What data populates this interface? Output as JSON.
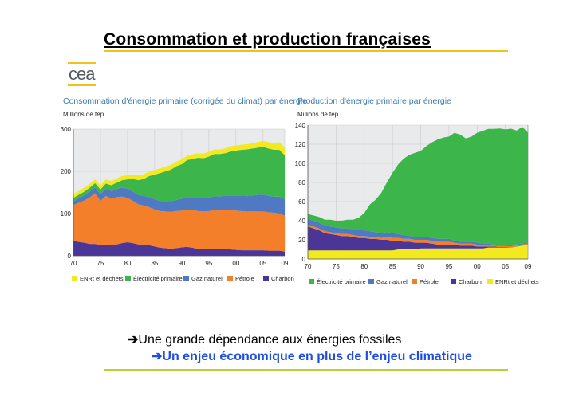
{
  "slide": {
    "title": "Consommation et production françaises",
    "logo": "cea",
    "bullet_1_arrow": "➔",
    "bullet_1": "Une grande dépendance aux énergies fossiles",
    "bullet_2_arrow": "➔",
    "bullet_2": "Un enjeu économique en plus de l’enjeu climatique"
  },
  "colors": {
    "title_rule": "#f2c21a",
    "bottom_rule": "#b5d335",
    "emphasis_text": "#1f4fe0",
    "chart_title": "#3b7ab0",
    "enr": "#f2ea1e",
    "electricite": "#3cb54a",
    "gaz": "#4f7ac3",
    "petrole": "#f47f2a",
    "charbon": "#4b3597"
  },
  "chart_data": [
    {
      "type": "area",
      "stacked": true,
      "title": "Consommation d'énergie primaire (corrigée du climat) par énergie",
      "ylabel": "Millions de tep",
      "x": [
        1970,
        1972,
        1973,
        1974,
        1975,
        1976,
        1977,
        1978,
        1979,
        1980,
        1981,
        1982,
        1983,
        1984,
        1985,
        1986,
        1987,
        1988,
        1989,
        1990,
        1991,
        1992,
        1993,
        1994,
        1995,
        1996,
        1997,
        1998,
        1999,
        2000,
        2001,
        2002,
        2003,
        2004,
        2005,
        2006,
        2007,
        2008,
        2009
      ],
      "xticks": [
        "70",
        "75",
        "80",
        "85",
        "90",
        "95",
        "00",
        "05",
        "09"
      ],
      "xtick_values": [
        1970,
        1975,
        1980,
        1985,
        1990,
        1995,
        2000,
        2005,
        2009
      ],
      "ylim": [
        0,
        300
      ],
      "yticks": [
        0,
        100,
        200,
        300
      ],
      "series": [
        {
          "name": "Charbon",
          "values": [
            35,
            31,
            28,
            28,
            25,
            27,
            25,
            27,
            30,
            32,
            30,
            27,
            27,
            25,
            22,
            19,
            18,
            17,
            18,
            20,
            21,
            19,
            16,
            15,
            15,
            16,
            15,
            16,
            15,
            14,
            13,
            13,
            13,
            13,
            13,
            12,
            12,
            12,
            10
          ]
        },
        {
          "name": "Pétrole",
          "values": [
            85,
            100,
            110,
            120,
            105,
            115,
            110,
            112,
            110,
            105,
            100,
            95,
            92,
            90,
            88,
            87,
            87,
            87,
            88,
            87,
            88,
            90,
            90,
            90,
            91,
            92,
            92,
            93,
            93,
            93,
            93,
            92,
            92,
            92,
            92,
            91,
            90,
            88,
            85
          ]
        },
        {
          "name": "Gaz naturel",
          "values": [
            9,
            12,
            14,
            14,
            16,
            17,
            18,
            19,
            21,
            22,
            22,
            22,
            23,
            24,
            24,
            24,
            25,
            25,
            26,
            28,
            30,
            30,
            31,
            31,
            32,
            33,
            33,
            34,
            35,
            36,
            37,
            37,
            38,
            39,
            40,
            39,
            38,
            40,
            39
          ]
        },
        {
          "name": "Électricité primaire",
          "values": [
            8,
            9,
            9,
            10,
            11,
            12,
            14,
            15,
            18,
            22,
            30,
            35,
            40,
            50,
            58,
            66,
            70,
            75,
            80,
            82,
            88,
            90,
            95,
            95,
            97,
            100,
            101,
            100,
            104,
            106,
            108,
            110,
            111,
            112,
            113,
            112,
            111,
            111,
            104
          ]
        },
        {
          "name": "ENRt et déchets",
          "values": [
            9,
            9,
            9,
            9,
            10,
            10,
            10,
            10,
            10,
            10,
            10,
            11,
            11,
            11,
            11,
            11,
            11,
            11,
            11,
            11,
            11,
            11,
            11,
            11,
            11,
            11,
            11,
            11,
            12,
            12,
            12,
            12,
            13,
            13,
            14,
            15,
            16,
            18,
            18
          ]
        }
      ]
    },
    {
      "type": "area",
      "stacked": true,
      "title": "Production d'énergie primaire par énergie",
      "ylabel": "Millions de tep",
      "x": [
        1970,
        1972,
        1973,
        1974,
        1975,
        1976,
        1977,
        1978,
        1979,
        1980,
        1981,
        1982,
        1983,
        1984,
        1985,
        1986,
        1987,
        1988,
        1989,
        1990,
        1991,
        1992,
        1993,
        1994,
        1995,
        1996,
        1997,
        1998,
        1999,
        2000,
        2001,
        2002,
        2003,
        2004,
        2005,
        2006,
        2007,
        2008,
        2009
      ],
      "xticks": [
        "70",
        "75",
        "80",
        "85",
        "90",
        "95",
        "00",
        "05",
        "09"
      ],
      "xtick_values": [
        1970,
        1975,
        1980,
        1985,
        1990,
        1995,
        2000,
        2005,
        2009
      ],
      "ylim": [
        0,
        140
      ],
      "yticks": [
        0,
        20,
        40,
        60,
        80,
        100,
        120,
        140
      ],
      "series": [
        {
          "name": "ENRt et déchets",
          "values": [
            9,
            9,
            9,
            9,
            9,
            9,
            9,
            9,
            9,
            9,
            9,
            9,
            9,
            9,
            9,
            10,
            10,
            10,
            10,
            11,
            11,
            11,
            11,
            11,
            11,
            11,
            11,
            11,
            11,
            11,
            11,
            12,
            12,
            12,
            12,
            12,
            13,
            14,
            15
          ]
        },
        {
          "name": "Charbon",
          "values": [
            25,
            21,
            18,
            17,
            16,
            15,
            15,
            14,
            13,
            13,
            12,
            12,
            11,
            11,
            10,
            9,
            8,
            8,
            7,
            6,
            6,
            5,
            4,
            4,
            4,
            4,
            3,
            3,
            3,
            2,
            2,
            1,
            1,
            0.5,
            0.5,
            0.3,
            0.3,
            0.2,
            0.1
          ]
        },
        {
          "name": "Pétrole",
          "values": [
            2,
            2,
            2,
            2,
            2,
            2,
            2,
            2,
            2,
            2,
            2,
            2,
            2,
            3,
            3,
            3,
            3,
            3,
            3,
            3,
            3,
            3,
            3,
            3,
            3,
            2,
            2,
            2,
            2,
            2,
            2,
            2,
            1,
            1,
            1,
            1,
            1,
            1,
            1
          ]
        },
        {
          "name": "Gaz naturel",
          "values": [
            6,
            6,
            6,
            6,
            6,
            6,
            6,
            6,
            6,
            6,
            6,
            5,
            5,
            5,
            5,
            4,
            4,
            3,
            3,
            3,
            3,
            3,
            3,
            3,
            3,
            2,
            2,
            2,
            2,
            2,
            1,
            1,
            1,
            1,
            1,
            1,
            1,
            1,
            1
          ]
        },
        {
          "name": "Électricité primaire",
          "values": [
            5,
            6,
            6,
            7,
            7,
            8,
            9,
            10,
            13,
            18,
            28,
            34,
            42,
            52,
            63,
            73,
            80,
            85,
            88,
            90,
            95,
            100,
            104,
            106,
            107,
            113,
            112,
            108,
            110,
            115,
            118,
            120,
            121,
            122,
            121,
            122,
            119,
            122,
            115
          ]
        }
      ]
    }
  ]
}
